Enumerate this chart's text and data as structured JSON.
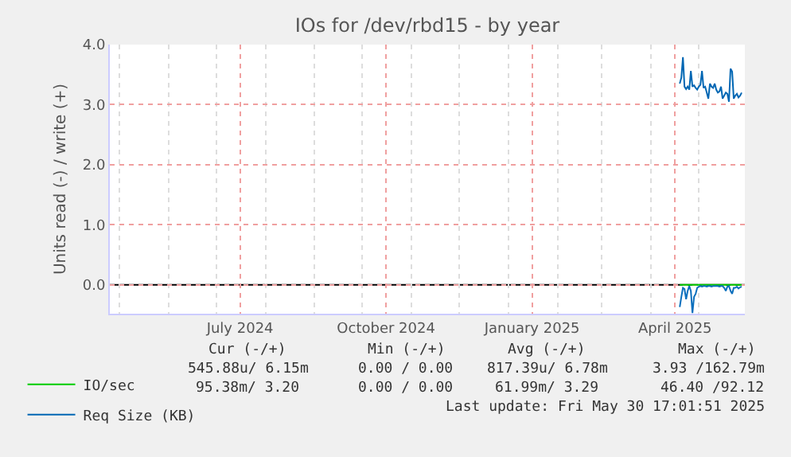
{
  "chart_data": {
    "type": "line",
    "title": "IOs for /dev/rbd15 - by year",
    "ylabel": "Units read (-) / write (+)",
    "x": [
      "2025-04-19",
      "2025-04-20",
      "2025-04-21",
      "2025-04-22",
      "2025-04-23",
      "2025-04-24",
      "2025-04-25",
      "2025-04-26",
      "2025-04-27",
      "2025-04-28",
      "2025-04-29",
      "2025-04-30",
      "2025-05-01",
      "2025-05-02",
      "2025-05-03",
      "2025-05-04",
      "2025-05-05",
      "2025-05-06",
      "2025-05-07",
      "2025-05-08",
      "2025-05-09",
      "2025-05-10",
      "2025-05-11",
      "2025-05-12",
      "2025-05-13",
      "2025-05-14",
      "2025-05-15",
      "2025-05-16",
      "2025-05-17",
      "2025-05-18",
      "2025-05-19",
      "2025-05-20",
      "2025-05-21",
      "2025-05-22",
      "2025-05-23",
      "2025-05-24",
      "2025-05-25",
      "2025-05-26",
      "2025-05-27",
      "2025-05-28"
    ],
    "series": [
      {
        "name": "IO/sec",
        "color": "#00cc00",
        "values": [
          0,
          0,
          0,
          0,
          0,
          0,
          0,
          0,
          0,
          0,
          0,
          0,
          0,
          0,
          0,
          0,
          0,
          0,
          0,
          0,
          0,
          0,
          0,
          0,
          0,
          0,
          0,
          0,
          0,
          0,
          0,
          0,
          0,
          0,
          0,
          0,
          0,
          0,
          0,
          0
        ]
      },
      {
        "color": "#0a6fbd",
        "values": [
          -0.37,
          -0.2,
          -0.05,
          -0.07,
          -0.24,
          -0.1,
          -0.02,
          -0.1,
          -0.47,
          -0.2,
          -0.15,
          -0.05,
          -0.03,
          -0.02,
          -0.03,
          -0.02,
          -0.02,
          -0.03,
          -0.02,
          -0.02,
          -0.03,
          -0.02,
          -0.02,
          -0.02,
          -0.02,
          -0.03,
          -0.02,
          -0.02,
          -0.05,
          -0.1,
          -0.03,
          -0.02,
          -0.1,
          -0.15,
          -0.05,
          -0.05,
          -0.03,
          -0.06,
          -0.04,
          -0.03
        ]
      },
      {
        "name": "Req Size (KB)",
        "color": "#0066b3",
        "values": [
          3.35,
          3.45,
          3.79,
          3.3,
          3.26,
          3.3,
          3.25,
          3.56,
          3.3,
          3.32,
          3.28,
          3.25,
          3.3,
          3.33,
          3.56,
          3.28,
          3.3,
          3.2,
          3.1,
          3.35,
          3.3,
          3.28,
          3.35,
          3.25,
          3.2,
          3.22,
          3.3,
          3.1,
          3.15,
          3.2,
          3.18,
          3.05,
          3.6,
          3.55,
          3.1,
          3.15,
          3.18,
          3.12,
          3.15,
          3.2
        ]
      }
    ],
    "xlim": [
      "2024-04-25",
      "2025-05-30"
    ],
    "xticks": [
      {
        "value": "2024-07-16",
        "label": "July 2024"
      },
      {
        "value": "2024-10-16",
        "label": "October 2024"
      },
      {
        "value": "2025-01-16",
        "label": "January 2025"
      },
      {
        "value": "2025-04-16",
        "label": "April 2025"
      }
    ],
    "ylim": [
      -0.48,
      4.0
    ],
    "yticks": [
      {
        "value": 0,
        "label": "0.0"
      },
      {
        "value": 1,
        "label": "1.0"
      },
      {
        "value": 2,
        "label": "2.0"
      },
      {
        "value": 3,
        "label": "3.0"
      },
      {
        "value": 4,
        "label": "4.0"
      }
    ],
    "ref_lines": [
      {
        "axis": "y",
        "value": 0,
        "color": "#000000"
      }
    ],
    "grid": true,
    "legend": "bottom left",
    "line_style": "solid",
    "annotations": [
      "Cur (-/+)",
      "Min (-/+)",
      "Avg (-/+)",
      "Max (-/+)",
      "545.88u/ 6.15m",
      "0.00 / 0.00",
      "817.39u/ 6.78m",
      "3.93 /162.79m",
      "95.38m/ 3.20",
      "0.00 / 0.00",
      "61.99m/ 3.29",
      "46.40 /92.12",
      "Last update: Fri May 30 17:01:51 2025"
    ]
  }
}
